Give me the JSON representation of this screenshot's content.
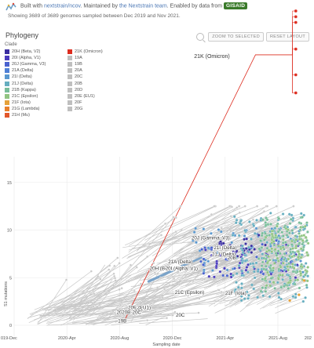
{
  "header": {
    "built_prefix": "Built with ",
    "built_link": "nextstrain/ncov",
    "maintained_prefix": ". Maintained by ",
    "maintained_link": "the Nextstrain team",
    "enabled_text": ". Enabled by data from ",
    "gisaid_badge": "GISAID",
    "summary": "Showing 3689 of 3689 genomes sampled between Dec 2019 and Nov 2021."
  },
  "panel": {
    "title": "Phylogeny",
    "zoom_button": "ZOOM TO SELECTED",
    "reset_button": "RESET LAYOUT",
    "legend_title": "Clade"
  },
  "legend": [
    {
      "label": "20H (Beta, V2)",
      "color": "#3a2ea0"
    },
    {
      "label": "20I (Alpha, V1)",
      "color": "#4a3bbd"
    },
    {
      "label": "20J (Gamma, V3)",
      "color": "#4a62cf"
    },
    {
      "label": "21A (Delta)",
      "color": "#4f80d6"
    },
    {
      "label": "21I (Delta)",
      "color": "#5a98cf"
    },
    {
      "label": "21J (Delta)",
      "color": "#66aec0"
    },
    {
      "label": "21B (Kappa)",
      "color": "#79bd9a"
    },
    {
      "label": "21C (Epsilon)",
      "color": "#91c482"
    },
    {
      "label": "21F (Iota)",
      "color": "#e6a23a"
    },
    {
      "label": "21G (Lambda)",
      "color": "#e8802c"
    },
    {
      "label": "21H (Mu)",
      "color": "#e2572a"
    },
    {
      "label": "21K (Omicron)",
      "color": "#dd2c1f"
    },
    {
      "label": "19A",
      "color": "#bfbfbf"
    },
    {
      "label": "19B",
      "color": "#bfbfbf"
    },
    {
      "label": "20A",
      "color": "#bfbfbf"
    },
    {
      "label": "20C",
      "color": "#bfbfbf"
    },
    {
      "label": "20B",
      "color": "#bfbfbf"
    },
    {
      "label": "20D",
      "color": "#bfbfbf"
    },
    {
      "label": "20E (EU1)",
      "color": "#bfbfbf"
    },
    {
      "label": "20F",
      "color": "#bfbfbf"
    },
    {
      "label": "20G",
      "color": "#bfbfbf"
    }
  ],
  "chart_data": {
    "type": "scatter",
    "title": "",
    "xlabel": "Sampling date",
    "ylabel": "S1 mutations",
    "x_tick_labels": [
      "019-Dec",
      "2020-Apr",
      "2020-Aug",
      "2020-Dec",
      "2021-Apr",
      "2021-Aug",
      "202"
    ],
    "y_tick_labels": [
      "0",
      "5",
      "10",
      "15"
    ],
    "ylim": [
      0,
      15
    ],
    "grid": true,
    "clade_labels": [
      {
        "label": "21K (Omicron)",
        "x": 20.5,
        "y": 34
      },
      {
        "label": "20J (Gamma, V3)",
        "x": 14.9,
        "y": 9.0
      },
      {
        "label": "21I (Delta)",
        "x": 16.0,
        "y": 8.0
      },
      {
        "label": "21J (Delta)",
        "x": 15.9,
        "y": 7.3
      },
      {
        "label": "21A (Delta)",
        "x": 12.6,
        "y": 6.5
      },
      {
        "label": "20H (Beta, V2)",
        "x": 11.5,
        "y": 5.8
      },
      {
        "label": "20I (Alpha, V1)",
        "x": 12.7,
        "y": 5.8
      },
      {
        "label": "20B",
        "x": 16.5,
        "y": 6.9
      },
      {
        "label": "21C (Epsilon)",
        "x": 13.3,
        "y": 3.3
      },
      {
        "label": "21F (Iota)",
        "x": 16.8,
        "y": 3.2
      },
      {
        "label": "20E (EU1)",
        "x": 9.5,
        "y": 1.7
      },
      {
        "label": "20D",
        "x": 9.4,
        "y": 1.4
      },
      {
        "label": "20A",
        "x": 8.1,
        "y": 1.2
      },
      {
        "label": "20B",
        "x": 8.5,
        "y": 1.2
      },
      {
        "label": "20C",
        "x": 9.3,
        "y": 1.2
      },
      {
        "label": "20C",
        "x": 12.6,
        "y": 0.9
      },
      {
        "label": "19B",
        "x": 8.2,
        "y": 0.3
      }
    ],
    "series": [
      {
        "name": "21K (Omicron)",
        "color": "#dd2c1f",
        "points": [
          [
            21.0,
            33.0
          ],
          [
            21.0,
            32.4
          ],
          [
            21.0,
            31.8
          ],
          [
            21.0,
            29.0
          ],
          [
            21.0,
            26.3
          ],
          [
            21.0,
            24.4
          ]
        ]
      }
    ]
  }
}
